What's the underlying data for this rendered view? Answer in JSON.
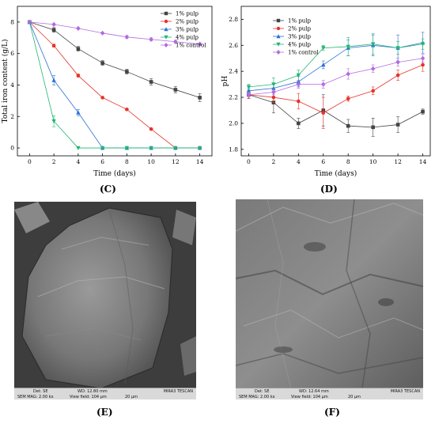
{
  "panels": {
    "c": {
      "label": "(C)"
    },
    "d": {
      "label": "(D)"
    },
    "e": {
      "label": "(E)",
      "sem": {
        "det": "Det: SE",
        "wd": "WD: 12.80 mm",
        "mag": "SEM MAG: 2.00 kx",
        "field": "View field: 104 μm",
        "scale": "20 μm",
        "brand": "MIRA3 TESCAN"
      }
    },
    "f": {
      "label": "(F)",
      "sem": {
        "det": "Det: SE",
        "wd": "WD: 12.64 mm",
        "mag": "SEM MAG: 2.00 kx",
        "field": "View field: 104 μm",
        "scale": "20 μm",
        "brand": "MIRA3 TESCAN"
      }
    }
  },
  "chart_data": [
    {
      "type": "line",
      "xlabel": "Time (days)",
      "ylabel": "Total iron content (g/L)",
      "xlim": [
        -1,
        15
      ],
      "ylim": [
        -0.5,
        9
      ],
      "xticks": [
        0,
        2,
        4,
        6,
        8,
        10,
        12,
        14
      ],
      "yticks": [
        0,
        2,
        4,
        6,
        8
      ],
      "legend_position": "top-right",
      "series": [
        {
          "name": "1% pulp",
          "color": "#444444",
          "marker": "square",
          "x": [
            0,
            2,
            4,
            6,
            8,
            10,
            12,
            14
          ],
          "y": [
            8.0,
            7.5,
            6.3,
            5.4,
            4.85,
            4.2,
            3.7,
            3.2
          ],
          "err": [
            0.1,
            0.15,
            0.15,
            0.15,
            0.15,
            0.2,
            0.2,
            0.25
          ]
        },
        {
          "name": "2% pulp",
          "color": "#e8322a",
          "marker": "circle",
          "x": [
            0,
            2,
            4,
            6,
            8,
            10,
            12,
            14
          ],
          "y": [
            8.0,
            6.5,
            4.6,
            3.2,
            2.45,
            1.2,
            0.0,
            0.0
          ],
          "err": [
            0.05,
            0.1,
            0.1,
            0.05,
            0.05,
            0.05,
            0,
            0
          ]
        },
        {
          "name": "3% pulp",
          "color": "#2b6fd6",
          "marker": "triangle-up",
          "x": [
            0,
            2,
            4,
            6,
            8,
            10,
            12,
            14
          ],
          "y": [
            8.0,
            4.3,
            2.25,
            0.0,
            0.0,
            0.0,
            0.0,
            0.0
          ],
          "err": [
            0.05,
            0.3,
            0.2,
            0,
            0,
            0,
            0,
            0
          ]
        },
        {
          "name": "4% pulp",
          "color": "#22b573",
          "marker": "triangle-down",
          "x": [
            0,
            2,
            4,
            6,
            8,
            10,
            12,
            14
          ],
          "y": [
            8.0,
            1.7,
            0.0,
            0.0,
            0.0,
            0.0,
            0.0,
            0.0
          ],
          "err": [
            0.05,
            0.35,
            0,
            0,
            0,
            0,
            0,
            0
          ]
        },
        {
          "name": "1% control",
          "color": "#b36ae2",
          "marker": "diamond",
          "x": [
            0,
            2,
            4,
            6,
            8,
            10,
            12,
            14
          ],
          "y": [
            8.0,
            7.85,
            7.6,
            7.3,
            7.05,
            6.9,
            6.75,
            6.6
          ],
          "err": [
            0.05,
            0.05,
            0.05,
            0.05,
            0.1,
            0.1,
            0.1,
            0.1
          ]
        }
      ]
    },
    {
      "type": "line",
      "xlabel": "Time (days)",
      "ylabel": "pH",
      "xlim": [
        -0.6,
        14.6
      ],
      "ylim": [
        1.75,
        2.9
      ],
      "xticks": [
        0,
        2,
        4,
        6,
        8,
        10,
        12,
        14
      ],
      "yticks": [
        1.8,
        2.0,
        2.2,
        2.4,
        2.6,
        2.8
      ],
      "legend_position": "top-left",
      "series": [
        {
          "name": "1% pulp",
          "color": "#444444",
          "marker": "square",
          "x": [
            0,
            2,
            4,
            6,
            8,
            10,
            12,
            14
          ],
          "y": [
            2.22,
            2.16,
            2.0,
            2.1,
            1.98,
            1.97,
            1.99,
            2.09
          ],
          "err": [
            0.03,
            0.08,
            0.04,
            0.12,
            0.05,
            0.07,
            0.06,
            0.02
          ]
        },
        {
          "name": "2% pulp",
          "color": "#e8322a",
          "marker": "circle",
          "x": [
            0,
            2,
            4,
            6,
            8,
            10,
            12,
            14
          ],
          "y": [
            2.22,
            2.2,
            2.17,
            2.08,
            2.19,
            2.25,
            2.37,
            2.45
          ],
          "err": [
            0.03,
            0.04,
            0.06,
            0.12,
            0.02,
            0.03,
            0.04,
            0.05
          ]
        },
        {
          "name": "3% pulp",
          "color": "#2b6fd6",
          "marker": "triangle-up",
          "x": [
            0,
            2,
            4,
            6,
            8,
            10,
            12,
            14
          ],
          "y": [
            2.25,
            2.27,
            2.32,
            2.45,
            2.58,
            2.6,
            2.58,
            2.62
          ],
          "err": [
            0.02,
            0.03,
            0.04,
            0.03,
            0.06,
            0.08,
            0.1,
            0.08
          ]
        },
        {
          "name": "4% pulp",
          "color": "#22b573",
          "marker": "triangle-down",
          "x": [
            0,
            2,
            4,
            6,
            8,
            10,
            12,
            14
          ],
          "y": [
            2.28,
            2.3,
            2.37,
            2.58,
            2.59,
            2.61,
            2.58,
            2.61
          ],
          "err": [
            0.02,
            0.05,
            0.04,
            0.02,
            0.07,
            0.08,
            0.05,
            0.04
          ]
        },
        {
          "name": "1% control",
          "color": "#b36ae2",
          "marker": "diamond",
          "x": [
            0,
            2,
            4,
            6,
            8,
            10,
            12,
            14
          ],
          "y": [
            2.22,
            2.24,
            2.3,
            2.3,
            2.38,
            2.42,
            2.47,
            2.5
          ],
          "err": [
            0.02,
            0.02,
            0.03,
            0.03,
            0.04,
            0.03,
            0.03,
            0.03
          ]
        }
      ]
    }
  ]
}
